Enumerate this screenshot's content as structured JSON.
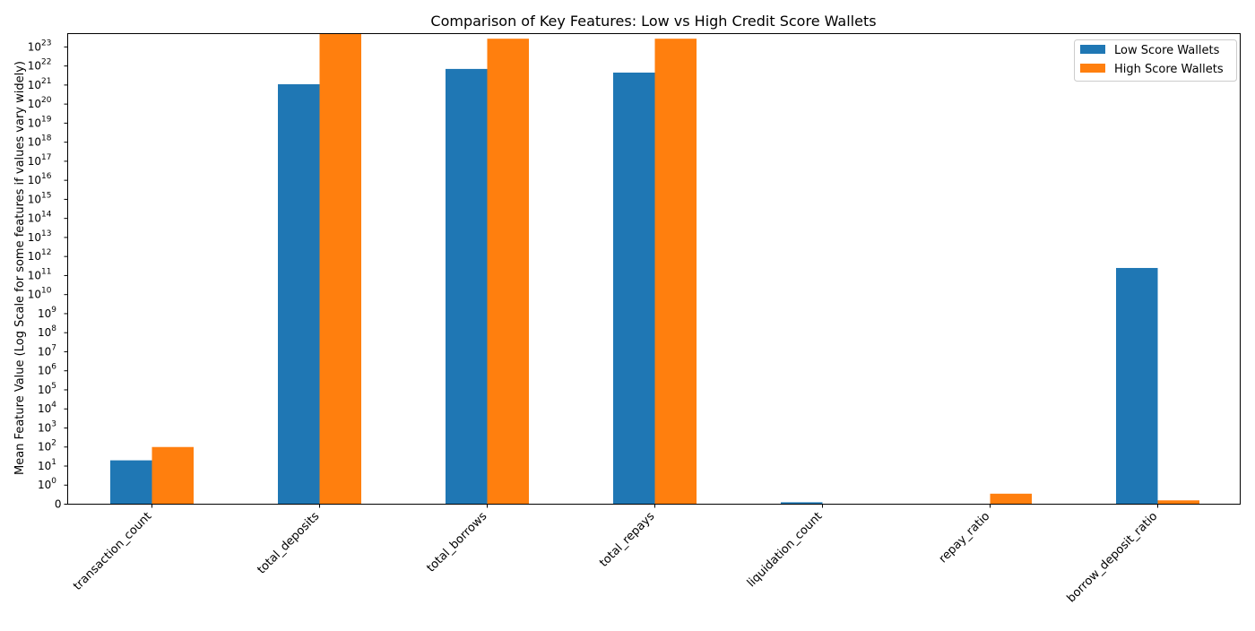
{
  "chart_data": {
    "type": "bar",
    "title": "Comparison of Key Features: Low vs High Credit Score Wallets",
    "xlabel": "",
    "ylabel": "Mean Feature Value (Log Scale for some features if values vary widely)",
    "scale": "symlog",
    "categories": [
      "transaction_count",
      "total_deposits",
      "total_borrows",
      "total_repays",
      "liquidation_count",
      "repay_ratio",
      "borrow_deposit_ratio"
    ],
    "series": [
      {
        "name": "Low Score Wallets",
        "color": "#1f77b4",
        "values": [
          20,
          1.1e+21,
          7e+21,
          4.5e+21,
          0.1,
          0,
          250000000000.0
        ]
      },
      {
        "name": "High Score Wallets",
        "color": "#ff7f0e",
        "values": [
          100,
          5e+23,
          2.7e+23,
          2.7e+23,
          0,
          0.55,
          0.2
        ]
      }
    ],
    "ylim": [
      0,
      5e+23
    ],
    "yticks": [
      "0",
      "10^0",
      "10^1",
      "10^2",
      "10^3",
      "10^4",
      "10^5",
      "10^6",
      "10^7",
      "10^8",
      "10^9",
      "10^10",
      "10^11",
      "10^12",
      "10^13",
      "10^14",
      "10^15",
      "10^16",
      "10^17",
      "10^18",
      "10^19",
      "10^20",
      "10^21",
      "10^22",
      "10^23"
    ],
    "grid": false,
    "legend_position": "top-right"
  }
}
